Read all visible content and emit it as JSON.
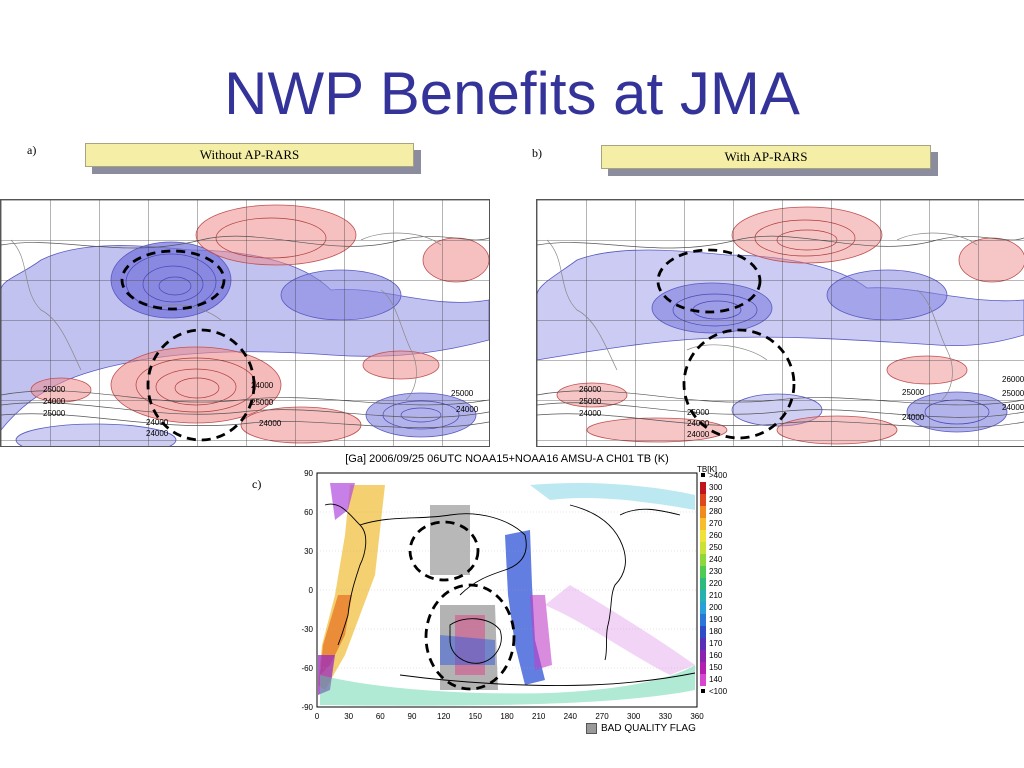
{
  "slide": {
    "title": "NWP Benefits at JMA"
  },
  "panels": {
    "a": {
      "letter": "a)",
      "label": "Without AP-RARS"
    },
    "b": {
      "letter": "b)",
      "label": "With AP-RARS"
    },
    "c": {
      "letter": "c)",
      "title": "[Ga] 2006/09/25 06UTC NOAA15+NOAA16 AMSU-A CH01 TB (K)"
    }
  },
  "contour_labels": {
    "a": [
      "25000",
      "24000",
      "25000",
      "24000",
      "24000",
      "24000",
      "25000",
      "24000",
      "25000",
      "24000"
    ],
    "b": [
      "26000",
      "25000",
      "24000",
      "25000",
      "24000",
      "24000",
      "25000",
      "24000",
      "26000",
      "25000",
      "24000"
    ]
  },
  "chart_data": {
    "type": "heatmap",
    "title": "[Ga] 2006/09/25 06UTC NOAA15+NOAA16 AMSU-A CH01 TB (K)",
    "x_ticks": [
      "0",
      "30",
      "60",
      "90",
      "120",
      "150",
      "180",
      "210",
      "240",
      "270",
      "300",
      "330",
      "360"
    ],
    "y_ticks": [
      "90",
      "60",
      "30",
      "0",
      "-30",
      "-60",
      "-90"
    ],
    "colorbar": {
      "unit": "TB[K]",
      "labels": [
        ">400",
        "300",
        "290",
        "280",
        "270",
        "260",
        "250",
        "240",
        "230",
        "220",
        "210",
        "200",
        "190",
        "180",
        "170",
        "160",
        "150",
        "140",
        "<100"
      ],
      "colors": [
        "#000000",
        "#c0151b",
        "#e0461c",
        "#ef8a1f",
        "#f7bd2a",
        "#efe23a",
        "#c8e236",
        "#8fd83c",
        "#4fcb51",
        "#2cbb7c",
        "#26b3b0",
        "#2aa0d8",
        "#2a76d8",
        "#2e4cc8",
        "#5a2fb8",
        "#8a22b0",
        "#b21fb0",
        "#d646d0",
        "#000000"
      ]
    },
    "legend_note": "BAD QUALITY FLAG",
    "legend_note_color": "#999999"
  },
  "colors": {
    "title": "#33339a",
    "label_fill": "#f4eea6",
    "circle": "#000000",
    "positive_anomaly": "#e88080",
    "negative_anomaly": "#7b7be0"
  }
}
